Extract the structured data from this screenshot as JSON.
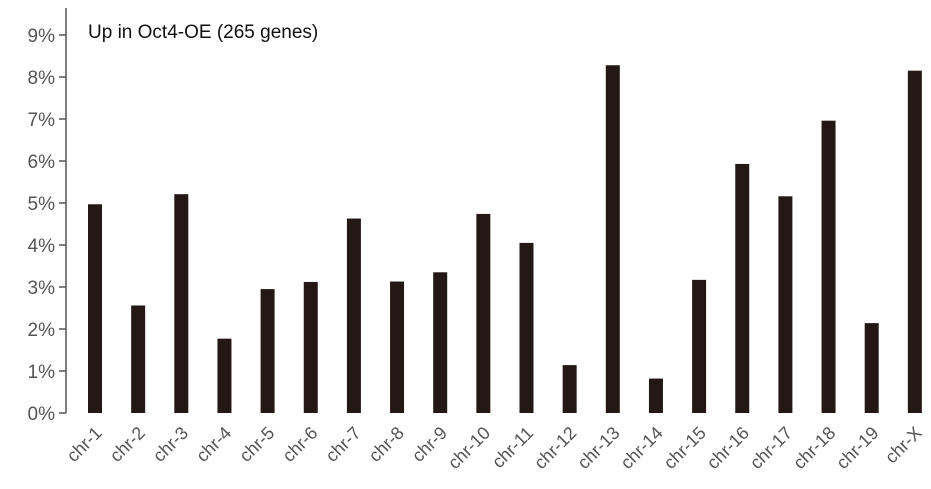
{
  "chart_data": {
    "type": "bar",
    "title": "Up in Oct4-OE (265 genes)",
    "xlabel": "",
    "ylabel": "",
    "categories": [
      "chr-1",
      "chr-2",
      "chr-3",
      "chr-4",
      "chr-5",
      "chr-6",
      "chr-7",
      "chr-8",
      "chr-9",
      "chr-10",
      "chr-11",
      "chr-12",
      "chr-13",
      "chr-14",
      "chr-15",
      "chr-16",
      "chr-17",
      "chr-18",
      "chr-19",
      "chr-X"
    ],
    "values": [
      4.97,
      2.56,
      5.21,
      1.77,
      2.95,
      3.12,
      4.63,
      3.13,
      3.35,
      4.74,
      4.05,
      1.14,
      8.28,
      0.82,
      3.17,
      5.93,
      5.16,
      6.96,
      2.14,
      8.15
    ],
    "ylim": [
      0,
      9
    ],
    "yticks": [
      0,
      1,
      2,
      3,
      4,
      5,
      6,
      7,
      8,
      9
    ],
    "ytick_labels": [
      "0%",
      "1%",
      "2%",
      "3%",
      "4%",
      "5%",
      "6%",
      "7%",
      "8%",
      "9%"
    ],
    "grid": false,
    "bar_color": "#231815"
  }
}
